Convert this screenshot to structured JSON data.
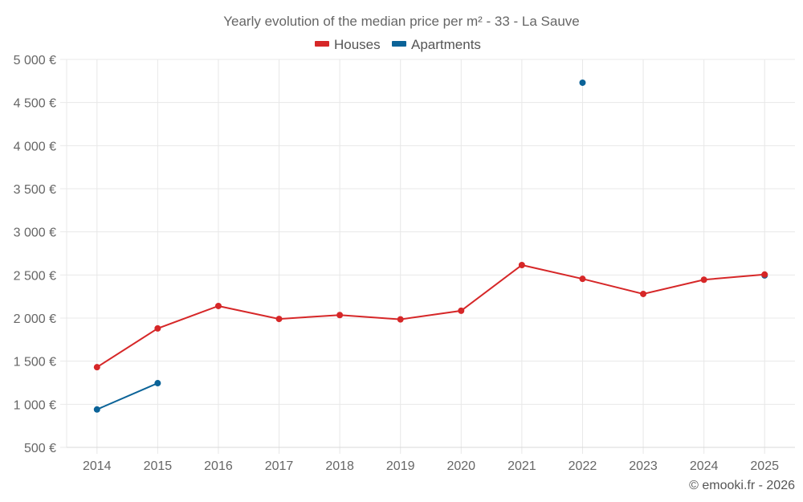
{
  "chart_data": {
    "type": "line",
    "title": "Yearly evolution of the median price per m² - 33 - La Sauve",
    "xlabel": "",
    "ylabel": "",
    "categories": [
      "2014",
      "2015",
      "2016",
      "2017",
      "2018",
      "2019",
      "2020",
      "2021",
      "2022",
      "2023",
      "2024",
      "2025"
    ],
    "ylim": [
      500,
      5000
    ],
    "yticks": [
      500,
      1000,
      1500,
      2000,
      2500,
      3000,
      3500,
      4000,
      4500,
      5000
    ],
    "ytick_labels": [
      "500 €",
      "1 000 €",
      "1 500 €",
      "2 000 €",
      "2 500 €",
      "3 000 €",
      "3 500 €",
      "4 000 €",
      "4 500 €",
      "5 000 €"
    ],
    "grid": true,
    "legend_position": "top-center",
    "series": [
      {
        "name": "Houses",
        "color": "#d62728",
        "values": [
          1430,
          1880,
          2140,
          1990,
          2035,
          1985,
          2085,
          2615,
          2455,
          2280,
          2445,
          2505
        ]
      },
      {
        "name": "Apartments",
        "color": "#0b6398",
        "values": [
          940,
          1245,
          null,
          null,
          null,
          null,
          null,
          null,
          4730,
          null,
          null,
          2495
        ]
      }
    ],
    "credit": "© emooki.fr - 2026"
  }
}
